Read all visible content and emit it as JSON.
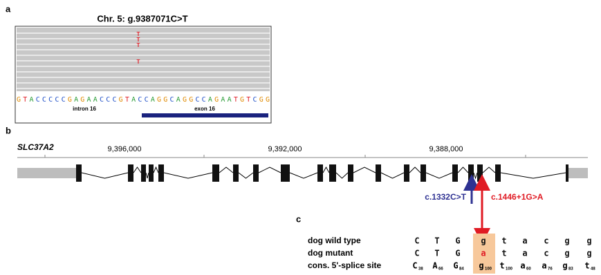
{
  "panel_a": {
    "label": "a",
    "title": "Chr. 5: g.9387071C>T",
    "read_alleles": [
      "T",
      "T",
      "T",
      "T"
    ],
    "sequence": "GTACCCCCGAGAACCCGTACCAGGCAGGCCAGAATGTCGG",
    "intron_label": "intron 16",
    "exon_label": "exon 16"
  },
  "panel_b": {
    "label": "b",
    "gene": "SLC37A2",
    "coordinates": [
      "9,396,000",
      "9,392,000",
      "9,388,000"
    ],
    "variant_1": "c.1332C>T",
    "variant_2": "c.1446+1G>A"
  },
  "panel_c": {
    "label": "c",
    "rows": [
      {
        "name": "dog wild type",
        "bases": [
          "C",
          "T",
          "G",
          "g",
          "t",
          "a",
          "c",
          "g",
          "g"
        ]
      },
      {
        "name": "dog mutant",
        "bases": [
          "C",
          "T",
          "G",
          "a",
          "t",
          "a",
          "c",
          "g",
          "g"
        ]
      }
    ],
    "consensus": {
      "name": "cons. 5'-splice site",
      "bases": [
        {
          "base": "C",
          "freq": 38
        },
        {
          "base": "A",
          "freq": 66
        },
        {
          "base": "G",
          "freq": 84
        },
        {
          "base": "g",
          "freq": 100
        },
        {
          "base": "t",
          "freq": 100
        },
        {
          "base": "a",
          "freq": 60
        },
        {
          "base": "a",
          "freq": 76
        },
        {
          "base": "g",
          "freq": 83
        },
        {
          "base": "t",
          "freq": 48
        }
      ]
    }
  }
}
